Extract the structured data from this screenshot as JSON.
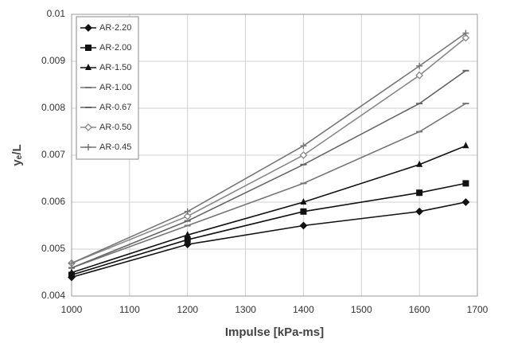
{
  "chart_data": {
    "type": "line",
    "x_label": "Impulse [kPa-ms]",
    "y_label": "yₑ/L",
    "x": [
      1000,
      1200,
      1400,
      1600,
      1680
    ],
    "xlim": [
      1000,
      1700
    ],
    "xticks": [
      1000,
      1100,
      1200,
      1300,
      1400,
      1500,
      1600,
      1700
    ],
    "ylim": [
      0.004,
      0.01
    ],
    "yticks": [
      0.004,
      0.005,
      0.006,
      0.007,
      0.008,
      0.009,
      0.01
    ],
    "grid": true,
    "legend": "top-left",
    "series": [
      {
        "name": "AR-2.20",
        "color": "#111111",
        "marker": "diamond",
        "values": [
          0.0044,
          0.0051,
          0.0055,
          0.0058,
          0.006
        ]
      },
      {
        "name": "AR-2.00",
        "color": "#111111",
        "marker": "square",
        "values": [
          0.00445,
          0.0052,
          0.0058,
          0.0062,
          0.0064
        ]
      },
      {
        "name": "AR-1.50",
        "color": "#111111",
        "marker": "triangle",
        "values": [
          0.0045,
          0.0053,
          0.006,
          0.0068,
          0.0072
        ]
      },
      {
        "name": "AR-1.00",
        "color": "#777777",
        "marker": "dash",
        "values": [
          0.0046,
          0.0055,
          0.0064,
          0.0075,
          0.0081
        ]
      },
      {
        "name": "AR-0.67",
        "color": "#666666",
        "marker": "dash",
        "values": [
          0.0046,
          0.0056,
          0.0068,
          0.0081,
          0.0088
        ]
      },
      {
        "name": "AR-0.50",
        "color": "#888888",
        "marker": "open-diamond",
        "values": [
          0.0047,
          0.0057,
          0.007,
          0.0087,
          0.0095
        ]
      },
      {
        "name": "AR-0.45",
        "color": "#777777",
        "marker": "plus",
        "values": [
          0.0047,
          0.0058,
          0.0072,
          0.0089,
          0.0096
        ]
      }
    ]
  }
}
